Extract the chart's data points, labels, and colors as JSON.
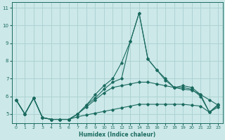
{
  "xlabel": "Humidex (Indice chaleur)",
  "bg_color": "#cce8e8",
  "line_color": "#1a6b60",
  "grid_color": "#aad0d0",
  "xlim": [
    -0.5,
    23.5
  ],
  "ylim": [
    4.5,
    11.3
  ],
  "xticks": [
    0,
    1,
    2,
    3,
    4,
    5,
    6,
    7,
    8,
    9,
    10,
    11,
    12,
    13,
    14,
    15,
    16,
    17,
    18,
    19,
    20,
    21,
    22,
    23
  ],
  "yticks": [
    5,
    6,
    7,
    8,
    9,
    10,
    11
  ],
  "line_peak": [
    5.8,
    5.0,
    5.9,
    4.8,
    4.7,
    4.7,
    4.7,
    5.0,
    5.5,
    6.1,
    6.6,
    7.0,
    7.9,
    9.1,
    10.7,
    8.1,
    7.5,
    7.0,
    6.5,
    6.6,
    6.5,
    6.1,
    5.1,
    5.55
  ],
  "line_upper": [
    5.8,
    5.0,
    5.9,
    4.8,
    4.7,
    4.7,
    4.7,
    5.0,
    5.5,
    5.9,
    6.4,
    6.8,
    7.0,
    9.1,
    10.7,
    8.1,
    7.5,
    6.9,
    6.5,
    6.5,
    6.4,
    6.0,
    5.1,
    5.5
  ],
  "line_mid": [
    5.8,
    5.0,
    5.9,
    4.8,
    4.7,
    4.7,
    4.7,
    5.0,
    5.4,
    5.8,
    6.2,
    6.5,
    6.6,
    6.7,
    6.8,
    6.8,
    6.7,
    6.6,
    6.5,
    6.4,
    6.35,
    6.1,
    5.8,
    5.5
  ],
  "line_low": [
    5.8,
    5.0,
    5.9,
    4.8,
    4.7,
    4.7,
    4.7,
    4.85,
    4.95,
    5.05,
    5.15,
    5.25,
    5.35,
    5.45,
    5.55,
    5.55,
    5.55,
    5.55,
    5.55,
    5.55,
    5.5,
    5.45,
    5.1,
    5.4
  ]
}
